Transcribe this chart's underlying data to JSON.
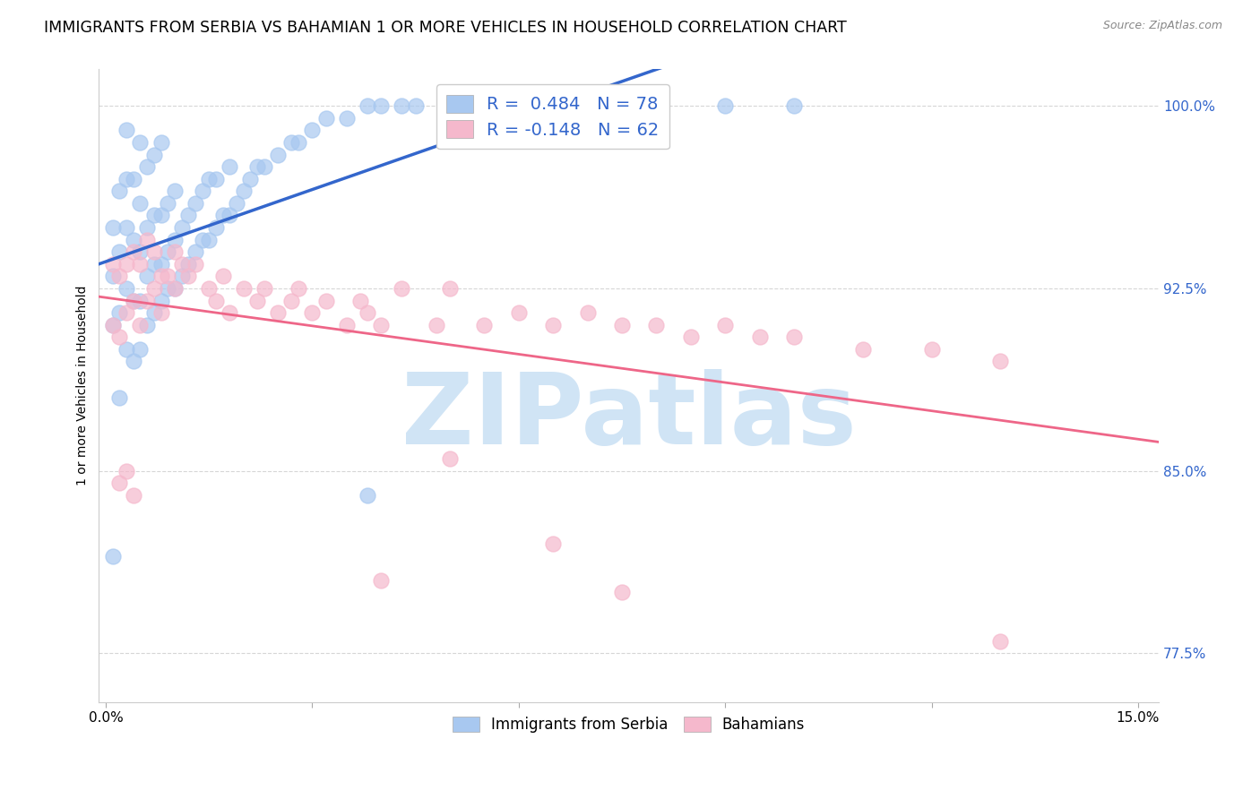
{
  "title": "IMMIGRANTS FROM SERBIA VS BAHAMIAN 1 OR MORE VEHICLES IN HOUSEHOLD CORRELATION CHART",
  "source": "Source: ZipAtlas.com",
  "ylabel": "1 or more Vehicles in Household",
  "ylim": [
    75.5,
    101.5
  ],
  "xlim": [
    -0.001,
    0.153
  ],
  "yticks": [
    77.5,
    85.0,
    92.5,
    100.0
  ],
  "serbia_color": "#a8c8f0",
  "bahamas_color": "#f5b8cc",
  "serbia_line_color": "#3366cc",
  "bahamas_line_color": "#ee6688",
  "legend_label_serbia": "Immigrants from Serbia",
  "legend_label_bahamas": "Bahamians",
  "watermark_text": "ZIPatlas",
  "watermark_color": "#d0e4f5",
  "title_fontsize": 12.5,
  "axis_label_fontsize": 10,
  "tick_fontsize": 11,
  "grid_color": "#cccccc",
  "serbia_R": 0.484,
  "serbia_N": 78,
  "bahamas_R": -0.148,
  "bahamas_N": 62,
  "serbia_x": [
    0.001,
    0.001,
    0.001,
    0.002,
    0.002,
    0.002,
    0.002,
    0.003,
    0.003,
    0.003,
    0.003,
    0.003,
    0.004,
    0.004,
    0.004,
    0.004,
    0.005,
    0.005,
    0.005,
    0.005,
    0.005,
    0.006,
    0.006,
    0.006,
    0.006,
    0.007,
    0.007,
    0.007,
    0.007,
    0.008,
    0.008,
    0.008,
    0.008,
    0.009,
    0.009,
    0.009,
    0.01,
    0.01,
    0.01,
    0.011,
    0.011,
    0.012,
    0.012,
    0.013,
    0.013,
    0.014,
    0.014,
    0.015,
    0.015,
    0.016,
    0.016,
    0.017,
    0.018,
    0.018,
    0.019,
    0.02,
    0.021,
    0.022,
    0.023,
    0.025,
    0.027,
    0.028,
    0.03,
    0.032,
    0.035,
    0.038,
    0.04,
    0.043,
    0.045,
    0.05,
    0.055,
    0.06,
    0.065,
    0.075,
    0.09,
    0.1,
    0.038,
    0.001
  ],
  "serbia_y": [
    91.0,
    93.0,
    95.0,
    88.0,
    91.5,
    94.0,
    96.5,
    90.0,
    92.5,
    95.0,
    97.0,
    99.0,
    89.5,
    92.0,
    94.5,
    97.0,
    90.0,
    92.0,
    94.0,
    96.0,
    98.5,
    91.0,
    93.0,
    95.0,
    97.5,
    91.5,
    93.5,
    95.5,
    98.0,
    92.0,
    93.5,
    95.5,
    98.5,
    92.5,
    94.0,
    96.0,
    92.5,
    94.5,
    96.5,
    93.0,
    95.0,
    93.5,
    95.5,
    94.0,
    96.0,
    94.5,
    96.5,
    94.5,
    97.0,
    95.0,
    97.0,
    95.5,
    95.5,
    97.5,
    96.0,
    96.5,
    97.0,
    97.5,
    97.5,
    98.0,
    98.5,
    98.5,
    99.0,
    99.5,
    99.5,
    100.0,
    100.0,
    100.0,
    100.0,
    100.0,
    100.0,
    100.0,
    100.0,
    100.0,
    100.0,
    100.0,
    84.0,
    81.5
  ],
  "bahamas_x": [
    0.001,
    0.001,
    0.002,
    0.002,
    0.003,
    0.003,
    0.004,
    0.004,
    0.005,
    0.005,
    0.006,
    0.006,
    0.007,
    0.007,
    0.008,
    0.008,
    0.009,
    0.01,
    0.01,
    0.011,
    0.012,
    0.013,
    0.015,
    0.016,
    0.017,
    0.018,
    0.02,
    0.022,
    0.023,
    0.025,
    0.027,
    0.028,
    0.03,
    0.032,
    0.035,
    0.037,
    0.038,
    0.04,
    0.043,
    0.048,
    0.05,
    0.055,
    0.06,
    0.065,
    0.07,
    0.075,
    0.08,
    0.085,
    0.09,
    0.095,
    0.1,
    0.11,
    0.12,
    0.13,
    0.002,
    0.003,
    0.004,
    0.05,
    0.065,
    0.075,
    0.04,
    0.13
  ],
  "bahamas_y": [
    91.0,
    93.5,
    90.5,
    93.0,
    91.5,
    93.5,
    92.0,
    94.0,
    91.0,
    93.5,
    92.0,
    94.5,
    92.5,
    94.0,
    91.5,
    93.0,
    93.0,
    92.5,
    94.0,
    93.5,
    93.0,
    93.5,
    92.5,
    92.0,
    93.0,
    91.5,
    92.5,
    92.0,
    92.5,
    91.5,
    92.0,
    92.5,
    91.5,
    92.0,
    91.0,
    92.0,
    91.5,
    91.0,
    92.5,
    91.0,
    92.5,
    91.0,
    91.5,
    91.0,
    91.5,
    91.0,
    91.0,
    90.5,
    91.0,
    90.5,
    90.5,
    90.0,
    90.0,
    89.5,
    84.5,
    85.0,
    84.0,
    85.5,
    82.0,
    80.0,
    80.5,
    78.0
  ]
}
